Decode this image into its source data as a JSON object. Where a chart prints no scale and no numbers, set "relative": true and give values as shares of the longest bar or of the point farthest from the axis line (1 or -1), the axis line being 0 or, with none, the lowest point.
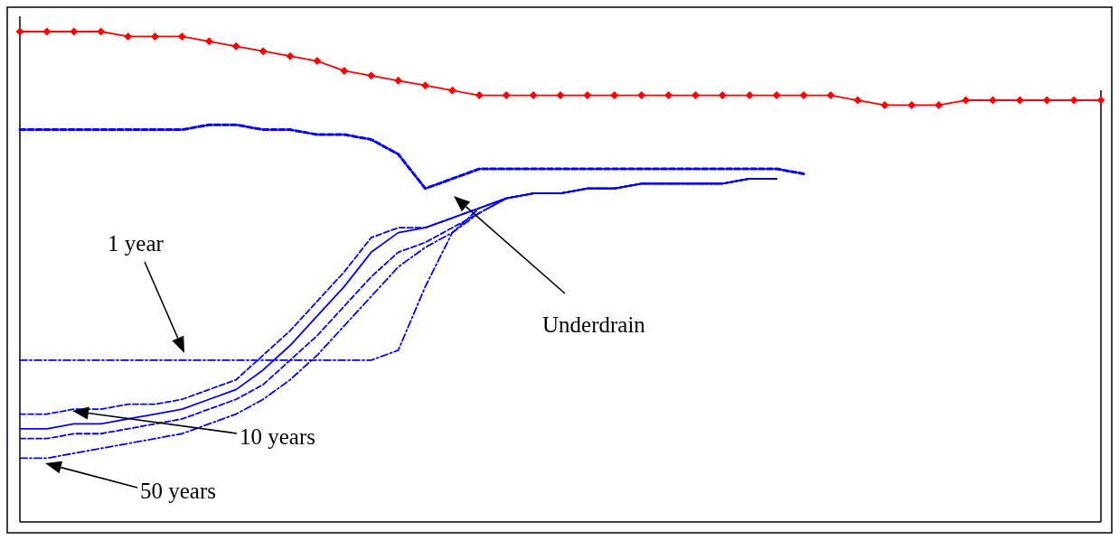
{
  "chart_data": {
    "type": "line",
    "relative": true,
    "categories": [
      null,
      null,
      null,
      null,
      null,
      null,
      null,
      null,
      null,
      null,
      null,
      null,
      null,
      null,
      null,
      null,
      null,
      null,
      null,
      null,
      null,
      null,
      null,
      null,
      null,
      null,
      null,
      null,
      null,
      null,
      null,
      null,
      null,
      null,
      null,
      null,
      null,
      null,
      null,
      null,
      null
    ],
    "series": [
      {
        "color": "#ff0000",
        "marker": "diamond",
        "line_style": "solid",
        "values": [
          1.0,
          1.0,
          1.0,
          1.0,
          0.99,
          0.99,
          0.99,
          0.98,
          0.97,
          0.96,
          0.95,
          0.94,
          0.92,
          0.91,
          0.9,
          0.89,
          0.88,
          0.87,
          0.87,
          0.87,
          0.87,
          0.87,
          0.87,
          0.87,
          0.87,
          0.87,
          0.87,
          0.87,
          0.87,
          0.87,
          0.87,
          0.86,
          0.85,
          0.85,
          0.85,
          0.86,
          0.86,
          0.86,
          0.86,
          0.86,
          0.86
        ]
      },
      {
        "color": "#0000ff",
        "marker": "none",
        "line_style": "dashed",
        "values": [
          0.8,
          0.8,
          0.8,
          0.8,
          0.8,
          0.8,
          0.8,
          0.81,
          0.81,
          0.8,
          0.8,
          0.79,
          0.79,
          0.78,
          0.75,
          0.68,
          0.7,
          0.72,
          0.72,
          0.72,
          0.72,
          0.72,
          0.72,
          0.72,
          0.72,
          0.72,
          0.72,
          0.72,
          0.72,
          0.71,
          null,
          null,
          null,
          null,
          null,
          null,
          null,
          null,
          null,
          null,
          null
        ]
      },
      {
        "color": "#0000ff",
        "marker": "none",
        "line_style": "dashed",
        "values": [
          0.33,
          0.33,
          0.33,
          0.33,
          0.33,
          0.33,
          0.33,
          0.33,
          0.33,
          0.33,
          0.33,
          0.33,
          0.33,
          0.33,
          0.35,
          0.48,
          0.59,
          0.64,
          0.66,
          0.67,
          0.67,
          0.68,
          0.68,
          0.69,
          0.69,
          0.69,
          0.69,
          0.7,
          0.7,
          null,
          null,
          null,
          null,
          null,
          null,
          null,
          null,
          null,
          null,
          null,
          null
        ]
      },
      {
        "color": "#0000ff",
        "marker": "none",
        "line_style": "dashed",
        "values": [
          0.22,
          0.22,
          0.23,
          0.23,
          0.24,
          0.24,
          0.25,
          0.27,
          0.29,
          0.34,
          0.39,
          0.45,
          0.51,
          0.58,
          0.6,
          0.6,
          0.62,
          0.64,
          0.66,
          0.67,
          0.67,
          0.68,
          0.68,
          0.69,
          0.69,
          0.69,
          0.69,
          0.7,
          0.7,
          null,
          null,
          null,
          null,
          null,
          null,
          null,
          null,
          null,
          null,
          null,
          null
        ]
      },
      {
        "color": "#0000ff",
        "marker": "none",
        "line_style": "solid",
        "values": [
          0.19,
          0.19,
          0.2,
          0.2,
          0.21,
          0.22,
          0.23,
          0.25,
          0.27,
          0.31,
          0.36,
          0.42,
          0.48,
          0.55,
          0.59,
          0.6,
          0.62,
          0.64,
          0.66,
          0.67,
          0.67,
          0.68,
          0.68,
          0.69,
          0.69,
          0.69,
          0.69,
          0.7,
          0.7,
          null,
          null,
          null,
          null,
          null,
          null,
          null,
          null,
          null,
          null,
          null,
          null
        ]
      },
      {
        "color": "#0000ff",
        "marker": "none",
        "line_style": "dashed",
        "values": [
          0.17,
          0.17,
          0.18,
          0.18,
          0.19,
          0.2,
          0.21,
          0.23,
          0.25,
          0.28,
          0.33,
          0.38,
          0.44,
          0.5,
          0.55,
          0.57,
          0.6,
          0.63,
          0.66,
          0.67,
          0.67,
          0.68,
          0.68,
          0.69,
          0.69,
          0.69,
          0.69,
          0.7,
          0.7,
          null,
          null,
          null,
          null,
          null,
          null,
          null,
          null,
          null,
          null,
          null,
          null
        ]
      },
      {
        "color": "#0000ff",
        "marker": "none",
        "line_style": "dashed",
        "values": [
          0.13,
          0.13,
          0.14,
          0.15,
          0.16,
          0.17,
          0.18,
          0.2,
          0.22,
          0.25,
          0.29,
          0.34,
          0.4,
          0.46,
          0.52,
          0.56,
          0.59,
          0.63,
          0.66,
          0.67,
          0.67,
          0.68,
          0.68,
          0.69,
          0.69,
          0.69,
          0.69,
          0.7,
          0.7,
          null,
          null,
          null,
          null,
          null,
          null,
          null,
          null,
          null,
          null,
          null,
          null
        ]
      }
    ],
    "annotations": [
      "1 year",
      "10 years",
      "50 years",
      "Underdrain"
    ]
  }
}
